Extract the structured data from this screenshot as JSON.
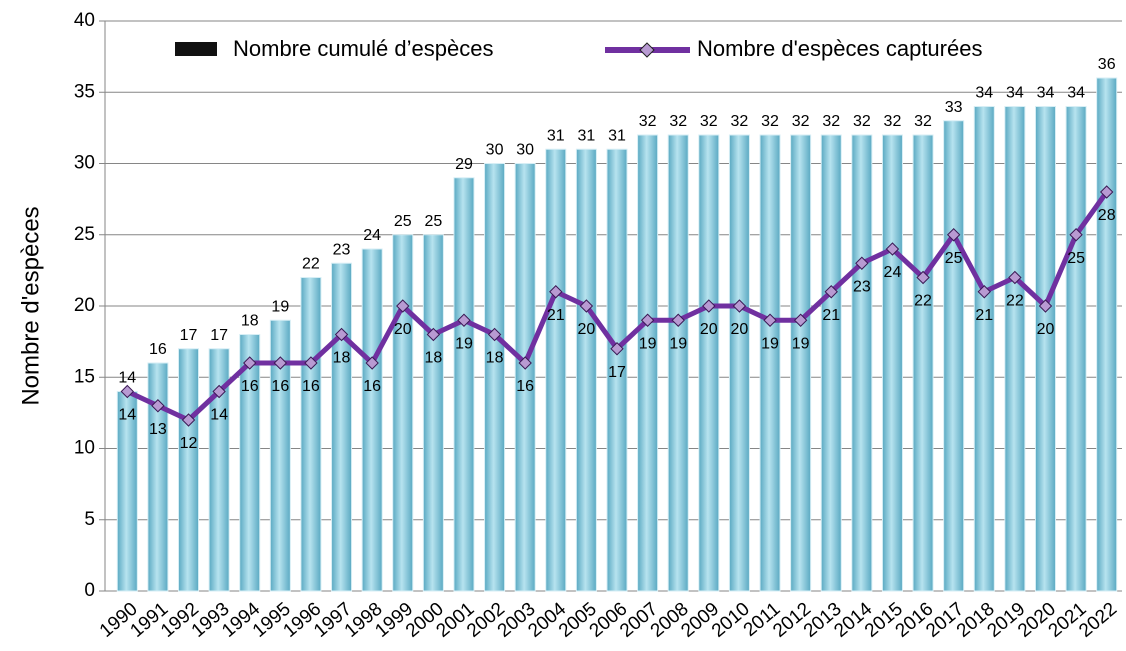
{
  "chart_data": {
    "type": "bar_line",
    "y_label": "Nombre d'espèces",
    "categories": [
      "1990",
      "1991",
      "1992",
      "1993",
      "1994",
      "1995",
      "1996",
      "1997",
      "1998",
      "1999",
      "2000",
      "2001",
      "2002",
      "2003",
      "2004",
      "2005",
      "2006",
      "2007",
      "2008",
      "2009",
      "2010",
      "2011",
      "2012",
      "2013",
      "2014",
      "2015",
      "2016",
      "2017",
      "2018",
      "2019",
      "2020",
      "2021",
      "2022"
    ],
    "series": [
      {
        "name": "Nombre cumulé d’espèces",
        "type": "bar",
        "color": "#86c9dc",
        "values": [
          14,
          16,
          17,
          17,
          18,
          19,
          22,
          23,
          24,
          25,
          25,
          29,
          30,
          30,
          31,
          31,
          31,
          32,
          32,
          32,
          32,
          32,
          32,
          32,
          32,
          32,
          32,
          33,
          34,
          34,
          34,
          34,
          36
        ]
      },
      {
        "name": "Nombre d'espèces capturées",
        "type": "line",
        "color": "#7030a0",
        "values": [
          14,
          13,
          12,
          14,
          16,
          16,
          16,
          18,
          16,
          20,
          18,
          19,
          18,
          16,
          21,
          20,
          17,
          19,
          19,
          20,
          20,
          19,
          19,
          21,
          23,
          24,
          22,
          25,
          21,
          22,
          20,
          25,
          28
        ]
      }
    ],
    "ylim": [
      0,
      40
    ],
    "yticks": [
      0,
      5,
      10,
      15,
      20,
      25,
      30,
      35,
      40
    ],
    "grid": true,
    "legend": "top"
  }
}
